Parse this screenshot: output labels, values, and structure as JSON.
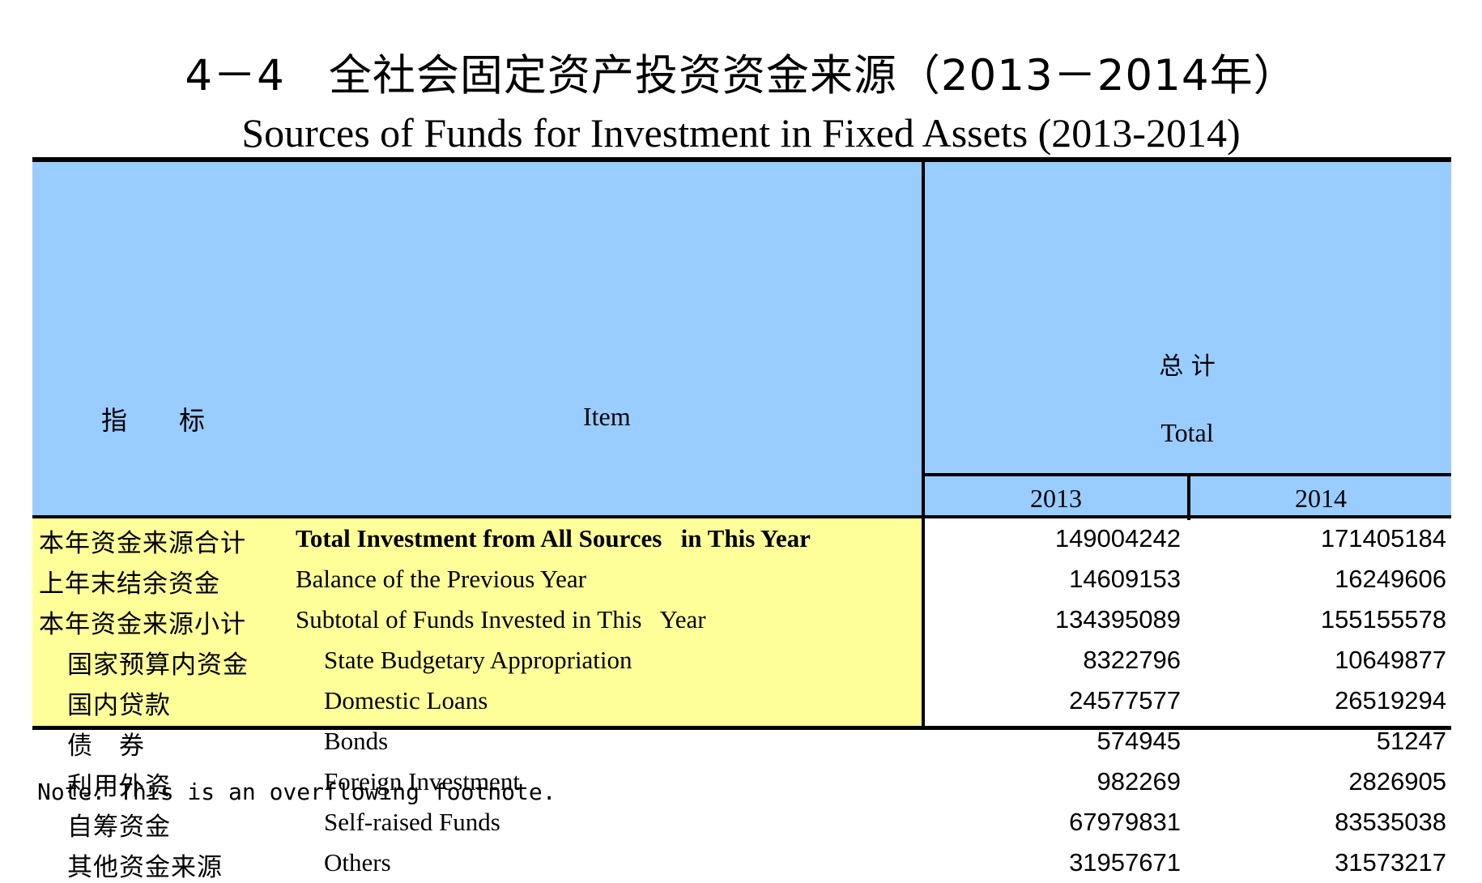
{
  "title": {
    "cn": "4－4　全社会固定资产投资资金来源（2013－2014年）",
    "en": "Sources of Funds for Investment in Fixed Assets (2013-2014)"
  },
  "header": {
    "item_cn": "指　　标",
    "item_en": "Item",
    "total_cn": "总 计",
    "total_en": "Total",
    "years": [
      "2013",
      "2014"
    ]
  },
  "rows": [
    {
      "cn": "本年资金来源合计",
      "en": "Total Investment from All Sources   in This Year",
      "v2013": "149004242",
      "v2014": "171405184",
      "bold": true,
      "level": 0
    },
    {
      "cn": "上年末结余资金",
      "en": "Balance of the Previous Year",
      "v2013": "14609153",
      "v2014": "16249606",
      "bold": false,
      "level": 0
    },
    {
      "cn": "本年资金来源小计",
      "en": "Subtotal of Funds Invested in This   Year",
      "v2013": "134395089",
      "v2014": "155155578",
      "bold": false,
      "level": 0
    },
    {
      "cn": "国家预算内资金",
      "en": "State Budgetary Appropriation",
      "v2013": "8322796",
      "v2014": "10649877",
      "bold": false,
      "level": 1
    },
    {
      "cn": "国内贷款",
      "en": "Domestic Loans",
      "v2013": "24577577",
      "v2014": "26519294",
      "bold": false,
      "level": 1
    },
    {
      "cn": "债　券",
      "en": "Bonds",
      "v2013": "574945",
      "v2014": "51247",
      "bold": false,
      "level": 1
    },
    {
      "cn": "利用外资",
      "en": "Foreign Investment",
      "v2013": "982269",
      "v2014": "2826905",
      "bold": false,
      "level": 1
    },
    {
      "cn": "自筹资金",
      "en": "Self-raised Funds",
      "v2013": "67979831",
      "v2014": "83535038",
      "bold": false,
      "level": 1
    },
    {
      "cn": "其他资金来源",
      "en": "Others",
      "v2013": "31957671",
      "v2014": "31573217",
      "bold": false,
      "level": 1
    }
  ],
  "note": "Note: This is an overflowing footnote.",
  "colors": {
    "header_bg": "#99ccff",
    "item_bg": "#ffff99",
    "rule": "#000000"
  }
}
